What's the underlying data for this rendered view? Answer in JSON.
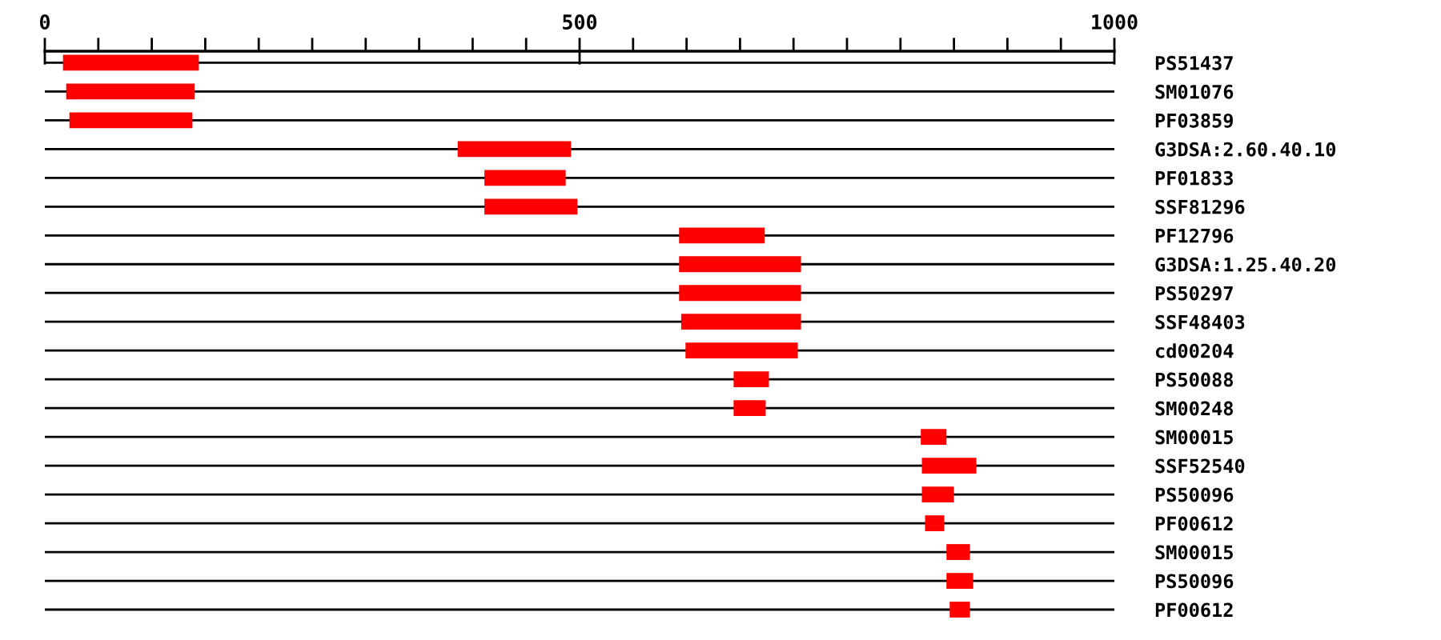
{
  "chart_data": {
    "type": "bar",
    "orientation": "horizontal",
    "categories": [
      "PS51437",
      "SM01076",
      "PF03859",
      "G3DSA:2.60.40.10",
      "PF01833",
      "SSF81296",
      "PF12796",
      "G3DSA:1.25.40.20",
      "PS50297",
      "SSF48403",
      "cd00204",
      "PS50088",
      "SM00248",
      "SM00015",
      "SSF52540",
      "PS50096",
      "PF00612",
      "SM00015",
      "PS50096",
      "PF00612"
    ],
    "base": [
      17,
      20,
      23,
      386,
      411,
      411,
      593,
      593,
      593,
      595,
      599,
      644,
      644,
      819,
      820,
      820,
      823,
      843,
      843,
      846
    ],
    "values": [
      127,
      120,
      115,
      106,
      76,
      87,
      80,
      114,
      114,
      112,
      105,
      33,
      30,
      24,
      51,
      30,
      18,
      22,
      25,
      19
    ],
    "color": "#ff0000",
    "xlim": [
      0,
      1000
    ],
    "xticks": [
      0,
      {
        "value": 50,
        "label": null
      },
      {
        "value": 100,
        "label": null
      },
      {
        "value": 150,
        "label": null
      },
      {
        "value": 200,
        "label": null
      },
      {
        "value": 250,
        "label": null
      },
      {
        "value": 300,
        "label": null
      },
      {
        "value": 350,
        "label": null
      },
      {
        "value": 400,
        "label": null
      },
      {
        "value": 450,
        "label": null
      },
      500,
      {
        "value": 550,
        "label": null
      },
      {
        "value": 600,
        "label": null
      },
      {
        "value": 650,
        "label": null
      },
      {
        "value": 700,
        "label": null
      },
      {
        "value": 750,
        "label": null
      },
      {
        "value": 800,
        "label": null
      },
      {
        "value": 850,
        "label": null
      },
      {
        "value": 900,
        "label": null
      },
      {
        "value": 950,
        "label": null
      },
      1000
    ],
    "grid": "y"
  }
}
